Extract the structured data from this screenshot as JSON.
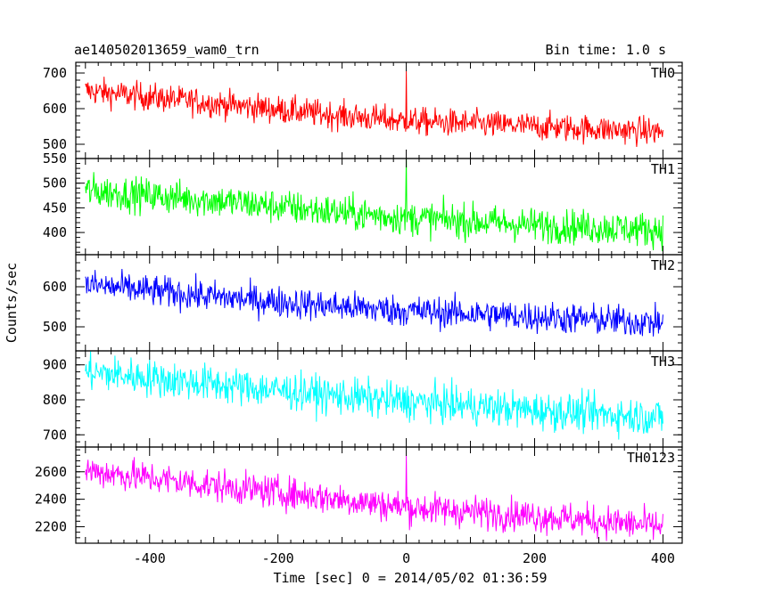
{
  "header": {
    "left_title": "ae140502013659_wam0_trn",
    "right_title": "Bin time: 1.0 s"
  },
  "chart_data": {
    "type": "line",
    "xlabel": "Time [sec] 0 = 2014/05/02 01:36:59",
    "ylabel": "Counts/sec",
    "xlim": [
      -515,
      430
    ],
    "x_ticks": [
      -400,
      -200,
      0,
      200,
      400
    ],
    "bin_time_s": 1.0,
    "panels": [
      {
        "name": "TH0",
        "color": "#ff0000",
        "ylim": [
          460,
          730
        ],
        "y_ticks": [
          500,
          600,
          700
        ],
        "trend": [
          [
            -500,
            650
          ],
          [
            -300,
            615
          ],
          [
            -100,
            580
          ],
          [
            0,
            565
          ],
          [
            200,
            550
          ],
          [
            400,
            535
          ]
        ],
        "noise": 28,
        "spike": {
          "x": 0,
          "y": 705
        }
      },
      {
        "name": "TH1",
        "color": "#00ff00",
        "ylim": [
          355,
          550
        ],
        "y_ticks": [
          400,
          450,
          500,
          550
        ],
        "trend": [
          [
            -500,
            485
          ],
          [
            -300,
            465
          ],
          [
            -100,
            440
          ],
          [
            0,
            430
          ],
          [
            200,
            415
          ],
          [
            400,
            405
          ]
        ],
        "noise": 25,
        "spike": {
          "x": 0,
          "y": 550
        }
      },
      {
        "name": "TH2",
        "color": "#0000ff",
        "ylim": [
          440,
          680
        ],
        "y_ticks": [
          500,
          600
        ],
        "trend": [
          [
            -500,
            605
          ],
          [
            -300,
            575
          ],
          [
            -100,
            550
          ],
          [
            0,
            540
          ],
          [
            200,
            525
          ],
          [
            400,
            510
          ]
        ],
        "noise": 28,
        "spike": null
      },
      {
        "name": "TH3",
        "color": "#00ffff",
        "ylim": [
          665,
          940
        ],
        "y_ticks": [
          700,
          800,
          900
        ],
        "trend": [
          [
            -500,
            880
          ],
          [
            -300,
            845
          ],
          [
            -100,
            810
          ],
          [
            0,
            795
          ],
          [
            200,
            770
          ],
          [
            400,
            750
          ]
        ],
        "noise": 38,
        "spike": null
      },
      {
        "name": "TH0123",
        "color": "#ff00ff",
        "ylim": [
          2080,
          2780
        ],
        "y_ticks": [
          2200,
          2400,
          2600
        ],
        "trend": [
          [
            -500,
            2610
          ],
          [
            -300,
            2500
          ],
          [
            -100,
            2400
          ],
          [
            0,
            2340
          ],
          [
            200,
            2280
          ],
          [
            400,
            2200
          ]
        ],
        "noise": 85,
        "spike": {
          "x": 0,
          "y": 2720
        }
      }
    ]
  }
}
